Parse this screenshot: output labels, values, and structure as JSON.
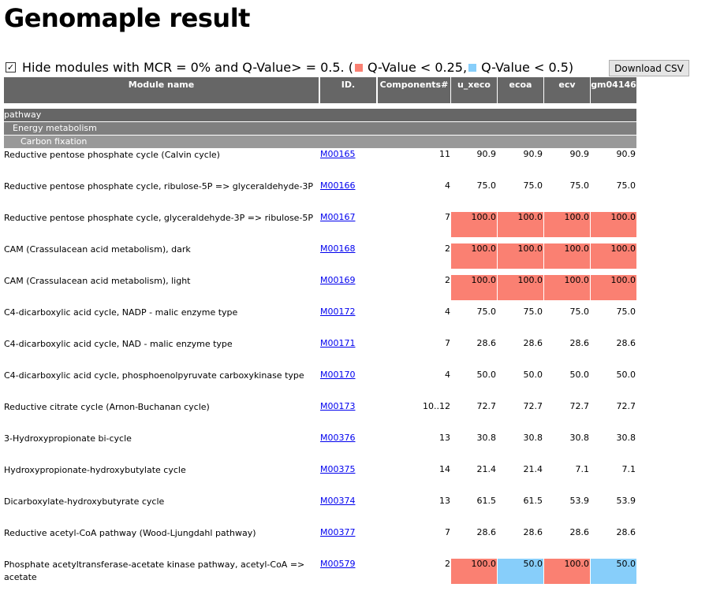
{
  "page": {
    "title": "Genomaple result"
  },
  "filter": {
    "checkbox_checked": true,
    "text_prefix": "Hide modules with MCR = 0% and Q-Value> = 0.5. (",
    "legend_red": "Q-Value < 0.25,",
    "legend_blue": "Q-Value < 0.5)",
    "colors": {
      "red": "#fa8072",
      "blue": "#87cefa"
    }
  },
  "download_button": "Download CSV",
  "table": {
    "headers": {
      "module_name": "Module name",
      "id": "ID.",
      "components": "Components#",
      "g1": "u_xeco",
      "g2": "ecoa",
      "g3": "ecv",
      "g4": "gm04146"
    },
    "groups": {
      "level1": "pathway",
      "level2": "Energy metabolism",
      "level3": "Carbon fixation"
    },
    "rows": [
      {
        "name": "Reductive pentose phosphate cycle (Calvin cycle)",
        "id": "M00165",
        "components": "11",
        "values": [
          "90.9",
          "90.9",
          "90.9",
          "90.9"
        ],
        "q": [
          "none",
          "none",
          "none",
          "none"
        ]
      },
      {
        "name": "Reductive pentose phosphate cycle, ribulose-5P => glyceraldehyde-3P",
        "id": "M00166",
        "components": "4",
        "values": [
          "75.0",
          "75.0",
          "75.0",
          "75.0"
        ],
        "q": [
          "none",
          "none",
          "none",
          "none"
        ]
      },
      {
        "name": "Reductive pentose phosphate cycle, glyceraldehyde-3P => ribulose-5P",
        "id": "M00167",
        "components": "7",
        "values": [
          "100.0",
          "100.0",
          "100.0",
          "100.0"
        ],
        "q": [
          "red",
          "red",
          "red",
          "red"
        ]
      },
      {
        "name": "CAM (Crassulacean acid metabolism), dark",
        "id": "M00168",
        "components": "2",
        "values": [
          "100.0",
          "100.0",
          "100.0",
          "100.0"
        ],
        "q": [
          "red",
          "red",
          "red",
          "red"
        ]
      },
      {
        "name": "CAM (Crassulacean acid metabolism), light",
        "id": "M00169",
        "components": "2",
        "values": [
          "100.0",
          "100.0",
          "100.0",
          "100.0"
        ],
        "q": [
          "red",
          "red",
          "red",
          "red"
        ]
      },
      {
        "name": "C4-dicarboxylic acid cycle, NADP - malic enzyme type",
        "id": "M00172",
        "components": "4",
        "values": [
          "75.0",
          "75.0",
          "75.0",
          "75.0"
        ],
        "q": [
          "none",
          "none",
          "none",
          "none"
        ]
      },
      {
        "name": "C4-dicarboxylic acid cycle, NAD - malic enzyme type",
        "id": "M00171",
        "components": "7",
        "values": [
          "28.6",
          "28.6",
          "28.6",
          "28.6"
        ],
        "q": [
          "none",
          "none",
          "none",
          "none"
        ]
      },
      {
        "name": "C4-dicarboxylic acid cycle, phosphoenolpyruvate carboxykinase type",
        "id": "M00170",
        "components": "4",
        "values": [
          "50.0",
          "50.0",
          "50.0",
          "50.0"
        ],
        "q": [
          "none",
          "none",
          "none",
          "none"
        ]
      },
      {
        "name": "Reductive citrate cycle (Arnon-Buchanan cycle)",
        "id": "M00173",
        "components": "10..12",
        "values": [
          "72.7",
          "72.7",
          "72.7",
          "72.7"
        ],
        "q": [
          "none",
          "none",
          "none",
          "none"
        ]
      },
      {
        "name": "3-Hydroxypropionate bi-cycle",
        "id": "M00376",
        "components": "13",
        "values": [
          "30.8",
          "30.8",
          "30.8",
          "30.8"
        ],
        "q": [
          "none",
          "none",
          "none",
          "none"
        ]
      },
      {
        "name": "Hydroxypropionate-hydroxybutylate cycle",
        "id": "M00375",
        "components": "14",
        "values": [
          "21.4",
          "21.4",
          "7.1",
          "7.1"
        ],
        "q": [
          "none",
          "none",
          "none",
          "none"
        ]
      },
      {
        "name": "Dicarboxylate-hydroxybutyrate cycle",
        "id": "M00374",
        "components": "13",
        "values": [
          "61.5",
          "61.5",
          "53.9",
          "53.9"
        ],
        "q": [
          "none",
          "none",
          "none",
          "none"
        ]
      },
      {
        "name": "Reductive acetyl-CoA pathway (Wood-Ljungdahl pathway)",
        "id": "M00377",
        "components": "7",
        "values": [
          "28.6",
          "28.6",
          "28.6",
          "28.6"
        ],
        "q": [
          "none",
          "none",
          "none",
          "none"
        ]
      },
      {
        "name": "Phosphate acetyltransferase-acetate kinase pathway, acetyl-CoA => acetate",
        "id": "M00579",
        "components": "2",
        "values": [
          "100.0",
          "50.0",
          "100.0",
          "50.0"
        ],
        "q": [
          "red",
          "blue",
          "red",
          "blue"
        ]
      }
    ]
  }
}
